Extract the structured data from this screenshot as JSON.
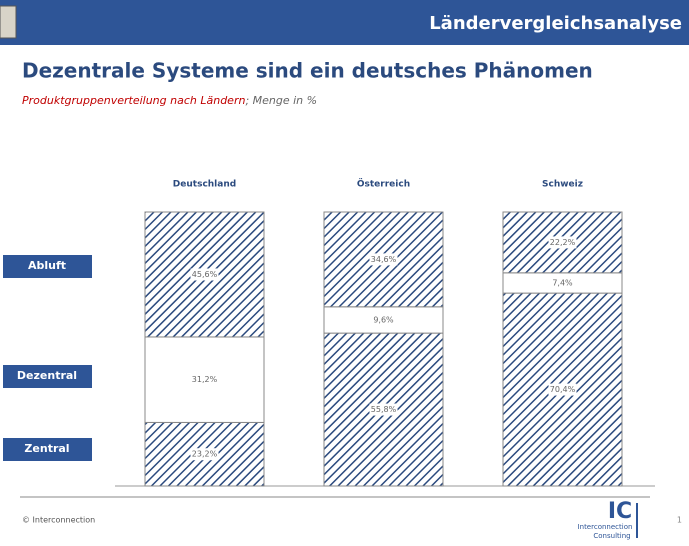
{
  "header": "Ländervergleichsanalyse",
  "chart_data": {
    "type": "stacked-bar",
    "title": "Dezentrale Systeme sind ein deutsches Phänomen",
    "subtitle": "Produktgruppenverteilung nach Ländern",
    "subtitle_unit": "; Menge in %",
    "categories": [
      "Deutschland",
      "Österreich",
      "Schweiz"
    ],
    "ylim": [
      0,
      100
    ],
    "series": [
      {
        "name": "Zentral",
        "color": "#2b4a7e",
        "hatched": true,
        "values": [
          23.2,
          55.8,
          70.4
        ],
        "value_labels": [
          "23,2%",
          "55,8%",
          "70,4%"
        ]
      },
      {
        "name": "Dezentral",
        "color": "#ffffff",
        "hatched": false,
        "values": [
          31.2,
          9.6,
          7.4
        ],
        "value_labels": [
          "31,2%",
          "9,6%",
          "7,4%"
        ]
      },
      {
        "name": "Abluft",
        "color": "#2b4a7e",
        "hatched": true,
        "values": [
          45.6,
          34.6,
          22.2
        ],
        "value_labels": [
          "45,6%",
          "34,6%",
          "22,2%"
        ]
      }
    ]
  },
  "footer": {
    "copyright": "© Interconnection",
    "page": 1
  },
  "logo": {
    "mark": "IC",
    "line1": "Interconnection",
    "line2": "Consulting"
  }
}
